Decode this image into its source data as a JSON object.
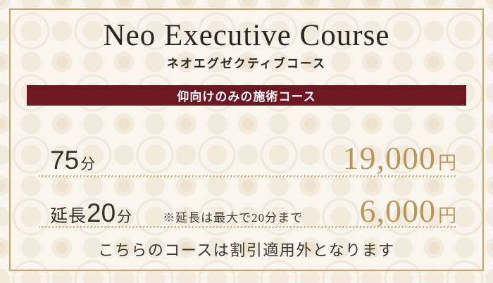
{
  "colors": {
    "bg": "#f9f5ed",
    "frame": "#c4a56c",
    "maroon": "#6e1722",
    "gold": "#b6985c",
    "gold-line": "#c7a465",
    "ink": "#2b2421",
    "ink2": "#37302b"
  },
  "card": {
    "title_en": "Neo Executive Course",
    "title_ja": "ネオエグゼクティブコース",
    "banner_label": "仰向けのみの施術コース",
    "price_rows": [
      {
        "duration_prefix": "",
        "duration_value": "75",
        "duration_unit": "分",
        "note": "",
        "price_value": "19,000",
        "price_unit": "円"
      },
      {
        "duration_prefix": "延長",
        "duration_value": "20",
        "duration_unit": "分",
        "note": "※延長は最大で20分まで",
        "price_value": "6,000",
        "price_unit": "円"
      }
    ],
    "footer_note": "こちらのコースは割引適用外となります"
  }
}
